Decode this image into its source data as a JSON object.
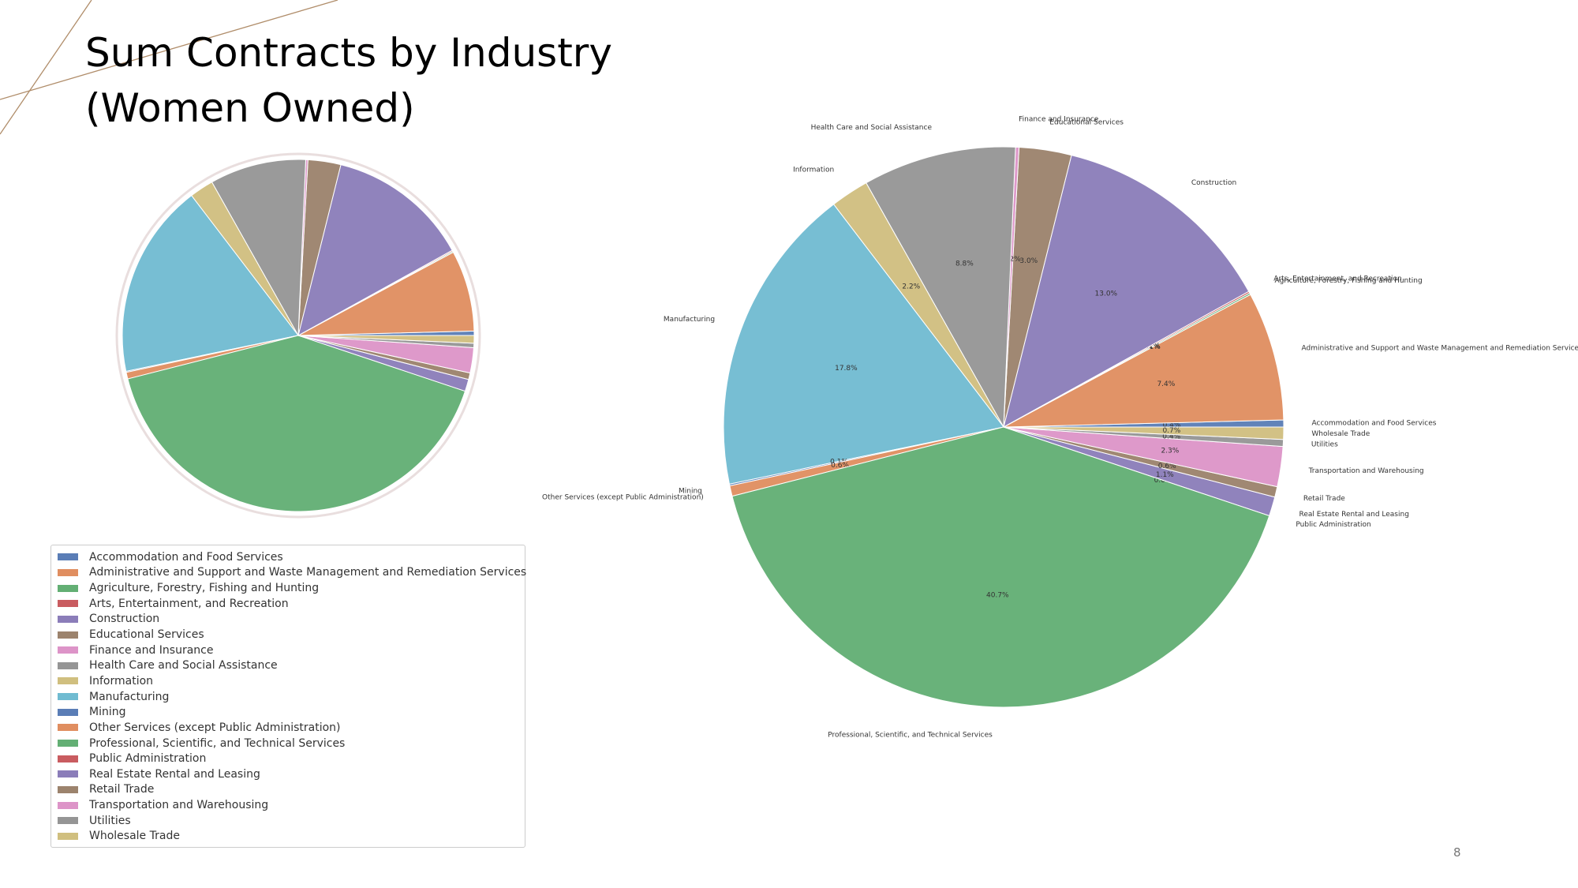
{
  "slide": {
    "title_lines": [
      "Sum Contracts by Industry",
      "(Women Owned)"
    ],
    "page_number": "8",
    "accent_color": "#b08d6a"
  },
  "chart_data": [
    {
      "type": "pie",
      "title": "",
      "legend_placement": "below",
      "slice_labels_shown": false,
      "categories": [
        "Accommodation and Food Services",
        "Administrative and Support and Waste Management and Remediation Services",
        "Agriculture, Forestry, Fishing and Hunting",
        "Arts, Entertainment, and Recreation",
        "Construction",
        "Educational Services",
        "Finance and Insurance",
        "Health Care and Social Assistance",
        "Information",
        "Manufacturing",
        "Mining",
        "Other Services (except Public Administration)",
        "Professional, Scientific, and Technical Services",
        "Public Administration",
        "Real Estate Rental and Leasing",
        "Retail Trade",
        "Transportation and Warehousing",
        "Utilities",
        "Wholesale Trade"
      ],
      "values": [
        0.4,
        7.4,
        0.1,
        0.1,
        13.0,
        3.0,
        0.2,
        8.8,
        2.2,
        17.8,
        0.1,
        0.6,
        40.7,
        0.0,
        1.1,
        0.6,
        2.3,
        0.4,
        0.7
      ],
      "start_angle_deg": 0,
      "direction": "counterclockwise",
      "colors": [
        "#4c72b0",
        "#dd8452",
        "#55a868",
        "#c44e52",
        "#8172b3",
        "#937860",
        "#da8bc3",
        "#8c8c8c",
        "#ccb974",
        "#64b5cd",
        "#4c72b0",
        "#dd8452",
        "#55a868",
        "#c44e52",
        "#8172b3",
        "#937860",
        "#da8bc3",
        "#8c8c8c",
        "#ccb974"
      ]
    },
    {
      "type": "pie",
      "title": "",
      "slice_labels_shown": true,
      "categories": [
        "Accommodation and Food Services",
        "Administrative and Support and Waste Management and Remediation Services",
        "Agriculture, Forestry, Fishing and Hunting",
        "Arts, Entertainment, and Recreation",
        "Construction",
        "Educational Services",
        "Finance and Insurance",
        "Health Care and Social Assistance",
        "Information",
        "Manufacturing",
        "Mining",
        "Other Services (except Public Administration)",
        "Professional, Scientific, and Technical Services",
        "Public Administration",
        "Real Estate Rental and Leasing",
        "Retail Trade",
        "Transportation and Warehousing",
        "Utilities",
        "Wholesale Trade"
      ],
      "values": [
        0.4,
        7.4,
        0.1,
        0.1,
        13.0,
        3.0,
        0.2,
        8.8,
        2.2,
        17.8,
        0.1,
        0.6,
        40.7,
        0.0,
        1.1,
        0.6,
        2.3,
        0.4,
        0.7
      ],
      "percent_labels": [
        "0.4%",
        "7.4%",
        "0.1%",
        "0.1%",
        "13.0%",
        "3.0%",
        "0.2%",
        "8.8%",
        "2.2%",
        "17.8%",
        "0.1%",
        "0.6%",
        "40.7%",
        "0.0%",
        "1.1%",
        "0.6%",
        "2.3%",
        "0.4%",
        "0.7%"
      ],
      "start_angle_deg": 0,
      "direction": "counterclockwise",
      "colors": [
        "#4c72b0",
        "#dd8452",
        "#55a868",
        "#c44e52",
        "#8172b3",
        "#937860",
        "#da8bc3",
        "#8c8c8c",
        "#ccb974",
        "#64b5cd",
        "#4c72b0",
        "#dd8452",
        "#55a868",
        "#c44e52",
        "#8172b3",
        "#937860",
        "#da8bc3",
        "#8c8c8c",
        "#ccb974"
      ]
    }
  ]
}
